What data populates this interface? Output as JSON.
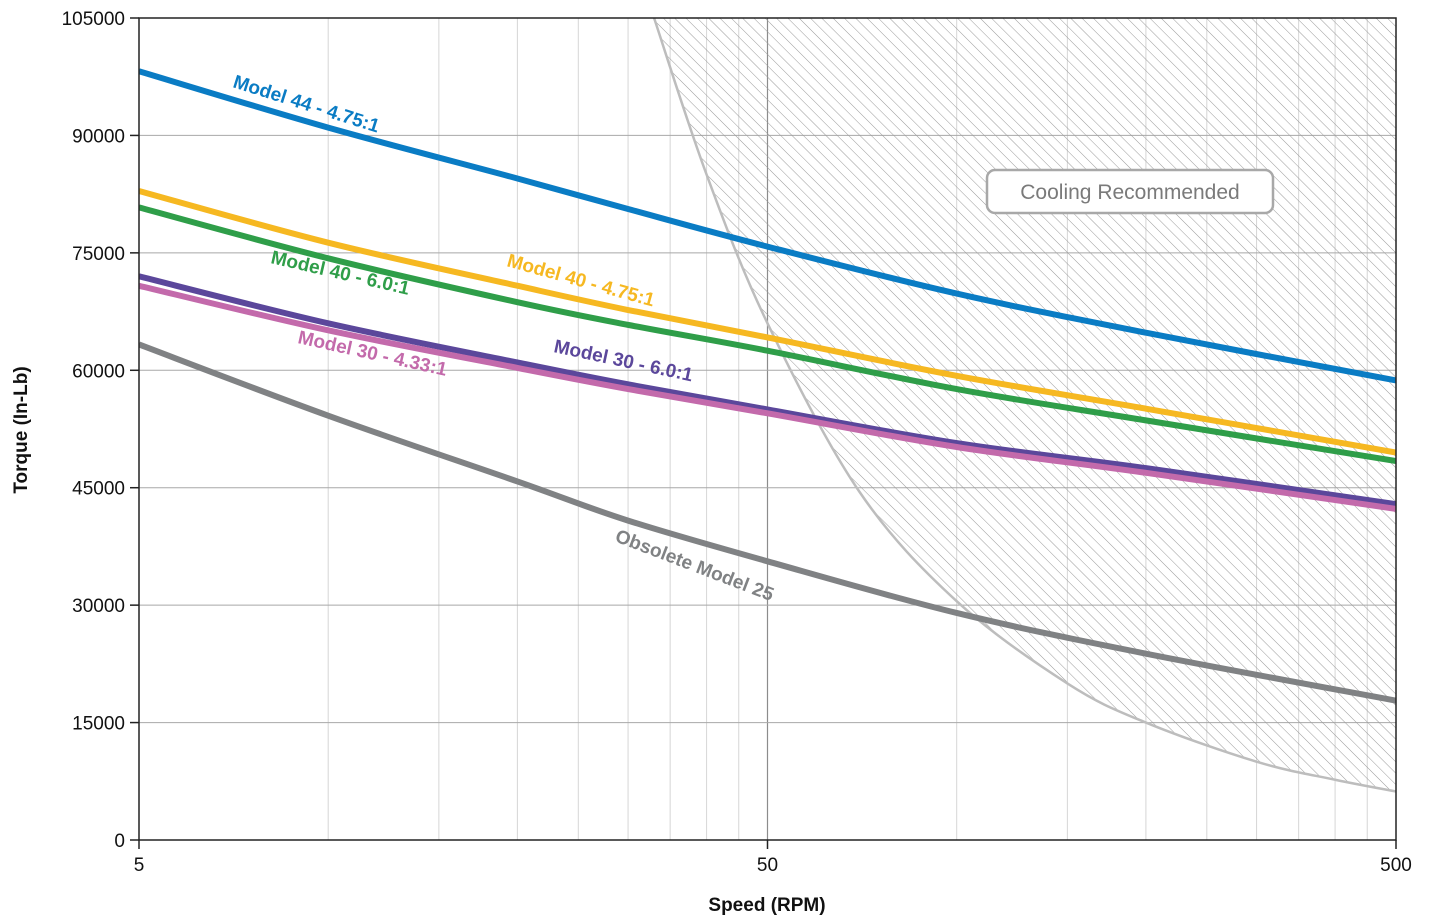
{
  "chart_data": {
    "type": "line",
    "xscale": "log",
    "xlim": [
      5,
      500
    ],
    "ylim": [
      0,
      105000
    ],
    "xlabel": "Speed (RPM)",
    "ylabel": "Torque (In-Lb)",
    "xticks": [
      "5",
      "50",
      "500"
    ],
    "yticks": [
      "0",
      "15000",
      "30000",
      "45000",
      "60000",
      "75000",
      "90000",
      "105000"
    ],
    "grid": true,
    "series": [
      {
        "name": "Model 44 - 4.75:1",
        "color": "#0a7cc4",
        "x": [
          5,
          10,
          20,
          30,
          50,
          100,
          200,
          500
        ],
        "y": [
          98200,
          91000,
          84500,
          80600,
          75800,
          69800,
          64800,
          58700
        ]
      },
      {
        "name": "Model 40 - 4.75:1",
        "color": "#f6b821",
        "x": [
          5,
          10,
          20,
          30,
          50,
          100,
          200,
          500
        ],
        "y": [
          82900,
          76300,
          70800,
          67700,
          64200,
          59300,
          55100,
          49500
        ]
      },
      {
        "name": "Model 40 - 6.0:1",
        "color": "#2f9e49",
        "x": [
          5,
          10,
          20,
          30,
          50,
          100,
          200,
          500
        ],
        "y": [
          80800,
          74300,
          68700,
          65800,
          62500,
          57600,
          53600,
          48400
        ]
      },
      {
        "name": "Model 30 - 6.0:1",
        "color": "#5b479b",
        "x": [
          5,
          10,
          20,
          30,
          50,
          100,
          200,
          500
        ],
        "y": [
          72000,
          66000,
          61000,
          58200,
          55000,
          50700,
          47500,
          42900
        ]
      },
      {
        "name": "Model 30 - 4.33:1",
        "color": "#c36aab",
        "x": [
          5,
          10,
          20,
          30,
          50,
          100,
          200,
          500
        ],
        "y": [
          70800,
          65100,
          60300,
          57600,
          54500,
          50200,
          46900,
          42300
        ]
      },
      {
        "name": "Obsolete Model 25",
        "color": "#808284",
        "x": [
          5,
          10,
          20,
          30,
          50,
          100,
          200,
          500
        ],
        "y": [
          63300,
          54200,
          45800,
          40800,
          35600,
          29000,
          23800,
          17800
        ]
      }
    ],
    "annotations": [
      {
        "text": "Cooling Recommended"
      }
    ],
    "cooling_boundary": {
      "x": [
        33,
        40,
        50,
        70,
        100,
        150,
        200,
        300,
        400,
        500
      ],
      "y": [
        105000,
        85000,
        66000,
        44500,
        30500,
        20000,
        15000,
        10000,
        7700,
        6200
      ]
    }
  }
}
